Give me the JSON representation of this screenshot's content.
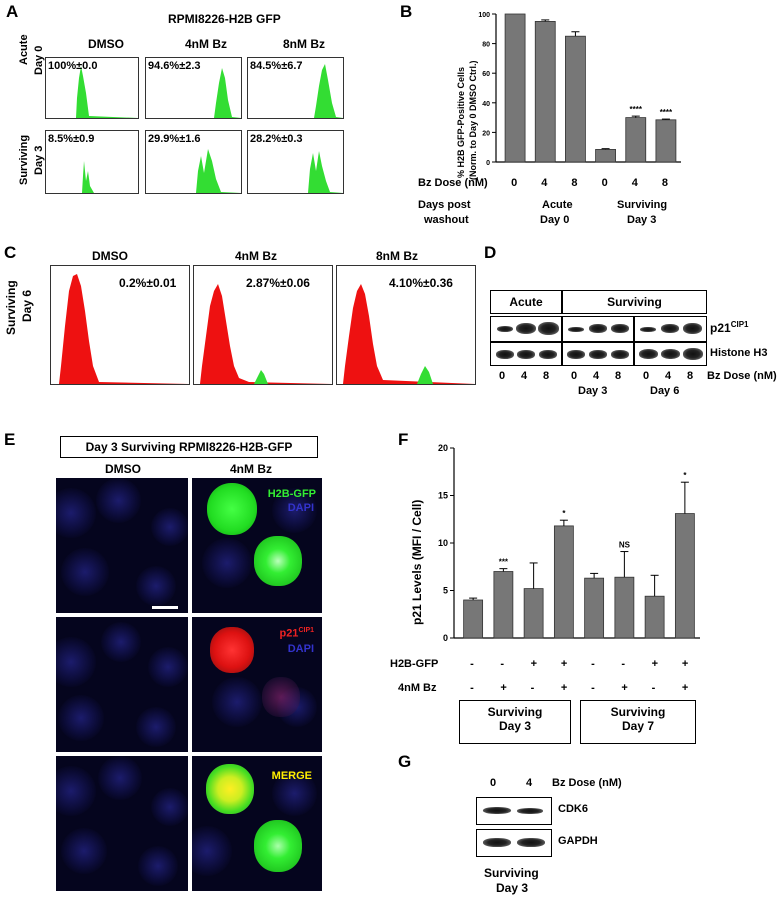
{
  "panelA": {
    "letter": "A",
    "title": "RPMI8226-H2B GFP",
    "columns": [
      "DMSO",
      "4nM Bz",
      "8nM Bz"
    ],
    "rows": [
      {
        "label_line1": "Acute",
        "label_line2": "Day 0",
        "values": [
          "100%±0.0",
          "94.6%±2.3",
          "84.5%±6.7"
        ]
      },
      {
        "label_line1": "Surviving",
        "label_line2": "Day 3",
        "values": [
          "8.5%±0.9",
          "29.9%±1.6",
          "28.2%±0.3"
        ]
      }
    ],
    "hist_color": "#33dd33"
  },
  "panelB": {
    "letter": "B",
    "ylabel_line1": "% H2B GFP-Positive Cells",
    "ylabel_line2": "(Norm. to Day 0 DMSO Ctrl.)",
    "yticks": [
      "0",
      "20",
      "40",
      "60",
      "80",
      "100"
    ],
    "dose_label": "Bz Dose (nM)",
    "doses": [
      "0",
      "4",
      "8",
      "0",
      "4",
      "8"
    ],
    "days_label_line1": "Days post",
    "days_label_line2": "washout",
    "group1_line1": "Acute",
    "group1_line2": "Day 0",
    "group2_line1": "Surviving",
    "group2_line2": "Day 3",
    "sig": [
      "",
      "",
      "",
      "",
      "****",
      "****"
    ],
    "bar_color": "#777777"
  },
  "panelC": {
    "letter": "C",
    "columns": [
      "DMSO",
      "4nM Bz",
      "8nM Bz"
    ],
    "row_label_line1": "Surviving",
    "row_label_line2": "Day 6",
    "values": [
      "0.2%±0.01",
      "2.87%±0.06",
      "4.10%±0.36"
    ],
    "hist_color": "#ee1111",
    "peak_color": "#33dd33"
  },
  "panelD": {
    "letter": "D",
    "header_acute": "Acute",
    "header_surviving": "Surviving",
    "protein1": "p21",
    "protein1_sup": "CIP1",
    "protein2": "Histone H3",
    "doses": [
      "0",
      "4",
      "8",
      "0",
      "4",
      "8",
      "0",
      "4",
      "8"
    ],
    "dose_label": "Bz Dose (nM)",
    "day3": "Day 3",
    "day6": "Day 6"
  },
  "panelE": {
    "letter": "E",
    "title": "Day 3 Surviving RPMI8226-H2B-GFP",
    "col1": "DMSO",
    "col2": "4nM Bz",
    "label_h2b": "H2B-GFP",
    "label_dapi": "DAPI",
    "label_p21": "p21",
    "label_p21_sup": "CIP1",
    "label_merge": "MERGE"
  },
  "panelF": {
    "letter": "F",
    "ylabel": "p21 Levels (MFI / Cell)",
    "yticks": [
      "0",
      "5",
      "10",
      "15",
      "20"
    ],
    "row1_label": "H2B-GFP",
    "row2_label": "4nM Bz",
    "row1_signs": [
      "-",
      "-",
      "+",
      "+",
      "-",
      "-",
      "+",
      "+"
    ],
    "row2_signs": [
      "-",
      "+",
      "-",
      "+",
      "-",
      "+",
      "-",
      "+"
    ],
    "sig": [
      "",
      "***",
      "",
      "*",
      "",
      "NS",
      "",
      "*"
    ],
    "group1_line1": "Surviving",
    "group1_line2": "Day 3",
    "group2_line1": "Surviving",
    "group2_line2": "Day 7",
    "bar_color": "#777777"
  },
  "panelG": {
    "letter": "G",
    "doses": [
      "0",
      "4"
    ],
    "dose_label": "Bz Dose (nM)",
    "protein1": "CDK6",
    "protein2": "GAPDH",
    "caption_line1": "Surviving",
    "caption_line2": "Day 3"
  },
  "chart_data": [
    {
      "type": "bar",
      "panel": "B",
      "categories": [
        "Acute Day 0 / 0",
        "Acute Day 0 / 4",
        "Acute Day 0 / 8",
        "Surviving Day 3 / 0",
        "Surviving Day 3 / 4",
        "Surviving Day 3 / 8"
      ],
      "values": [
        100,
        95,
        85,
        8.5,
        30,
        28.5
      ],
      "errors": [
        0,
        1,
        3,
        0.5,
        1,
        0.5
      ],
      "ylim": [
        0,
        100
      ]
    },
    {
      "type": "bar",
      "panel": "F",
      "categories": [
        "1",
        "2",
        "3",
        "4",
        "5",
        "6",
        "7",
        "8"
      ],
      "values": [
        4.0,
        7.0,
        5.2,
        11.8,
        6.3,
        6.4,
        4.4,
        13.1
      ],
      "errors": [
        0.2,
        0.3,
        2.7,
        0.6,
        0.5,
        2.7,
        2.2,
        3.3
      ],
      "ylim": [
        0,
        20
      ]
    }
  ]
}
